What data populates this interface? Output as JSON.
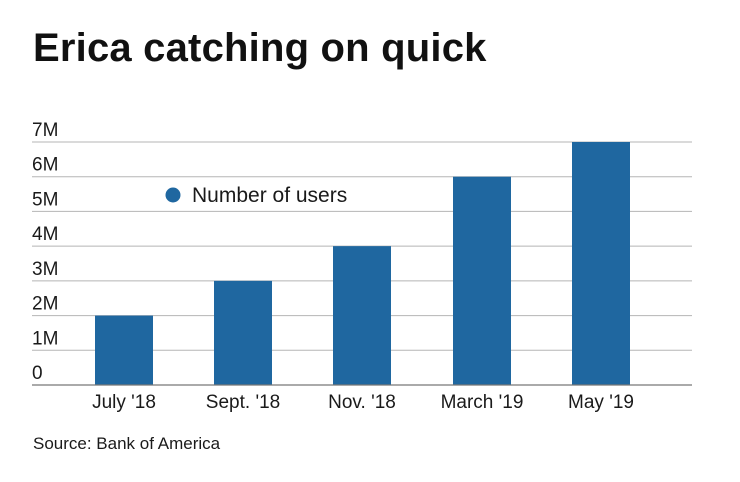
{
  "title": "Erica catching on quick",
  "source": "Source: Bank of America",
  "chart_data": {
    "type": "bar",
    "title": "Erica catching on quick",
    "categories": [
      "July '18",
      "Sept. '18",
      "Nov. '18",
      "March '19",
      "May '19"
    ],
    "series": [
      {
        "name": "Number of users",
        "values": [
          2000000,
          3000000,
          4000000,
          6000000,
          7000000
        ]
      }
    ],
    "y_ticks": [
      "0",
      "1M",
      "2M",
      "3M",
      "4M",
      "5M",
      "6M",
      "7M"
    ],
    "ylim": [
      0,
      7000000
    ],
    "xlabel": "",
    "ylabel": "",
    "grid": true,
    "legend_position": "top-left",
    "colors": {
      "bar": "#1f67a0",
      "grid": "#b5b5b5",
      "axis": "#777777"
    }
  }
}
